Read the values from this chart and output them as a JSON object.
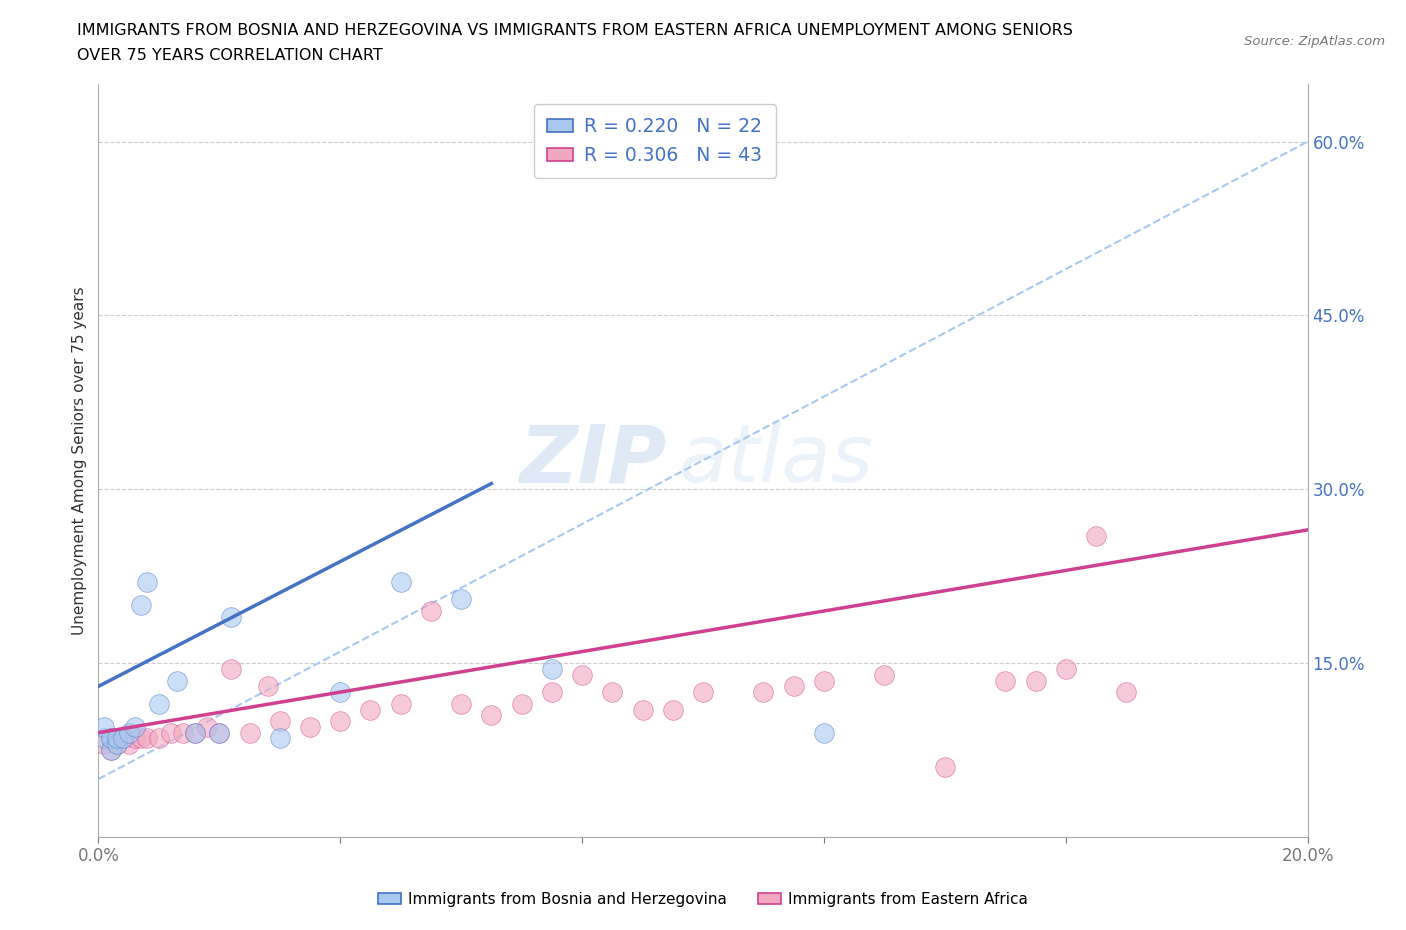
{
  "title_line1": "IMMIGRANTS FROM BOSNIA AND HERZEGOVINA VS IMMIGRANTS FROM EASTERN AFRICA UNEMPLOYMENT AMONG SENIORS",
  "title_line2": "OVER 75 YEARS CORRELATION CHART",
  "source": "Source: ZipAtlas.com",
  "ylabel": "Unemployment Among Seniors over 75 years",
  "xlim": [
    0.0,
    0.2
  ],
  "ylim": [
    0.0,
    0.65
  ],
  "x_ticks": [
    0.0,
    0.04,
    0.08,
    0.12,
    0.16,
    0.2
  ],
  "x_tick_labels": [
    "0.0%",
    "",
    "",
    "",
    "",
    "20.0%"
  ],
  "y_ticks_right": [
    0.15,
    0.3,
    0.45,
    0.6
  ],
  "y_tick_labels_right": [
    "15.0%",
    "30.0%",
    "45.0%",
    "60.0%"
  ],
  "legend_r1": "R = 0.220   N = 22",
  "legend_r2": "R = 0.306   N = 43",
  "color_bosnia": "#a8c8f0",
  "color_eastern": "#f0a8c0",
  "color_line_bosnia": "#4472c4",
  "color_line_eastern": "#d04090",
  "color_line_dashed": "#a8c8f0",
  "watermark_zip": "ZIP",
  "watermark_atlas": "atlas",
  "bosnia_scatter_x": [
    0.001,
    0.001,
    0.002,
    0.002,
    0.003,
    0.003,
    0.004,
    0.005,
    0.006,
    0.007,
    0.008,
    0.01,
    0.013,
    0.016,
    0.02,
    0.022,
    0.03,
    0.04,
    0.05,
    0.06,
    0.075,
    0.12
  ],
  "bosnia_scatter_y": [
    0.085,
    0.095,
    0.075,
    0.085,
    0.08,
    0.085,
    0.085,
    0.09,
    0.095,
    0.2,
    0.22,
    0.115,
    0.135,
    0.09,
    0.09,
    0.19,
    0.085,
    0.125,
    0.22,
    0.205,
    0.145,
    0.09
  ],
  "eastern_scatter_x": [
    0.001,
    0.002,
    0.002,
    0.003,
    0.004,
    0.005,
    0.006,
    0.007,
    0.008,
    0.01,
    0.012,
    0.014,
    0.016,
    0.018,
    0.02,
    0.022,
    0.025,
    0.028,
    0.03,
    0.035,
    0.04,
    0.045,
    0.05,
    0.055,
    0.06,
    0.065,
    0.07,
    0.075,
    0.08,
    0.085,
    0.09,
    0.095,
    0.1,
    0.11,
    0.115,
    0.12,
    0.13,
    0.14,
    0.15,
    0.155,
    0.16,
    0.165,
    0.17
  ],
  "eastern_scatter_y": [
    0.08,
    0.075,
    0.085,
    0.08,
    0.085,
    0.08,
    0.085,
    0.085,
    0.085,
    0.085,
    0.09,
    0.09,
    0.09,
    0.095,
    0.09,
    0.145,
    0.09,
    0.13,
    0.1,
    0.095,
    0.1,
    0.11,
    0.115,
    0.195,
    0.115,
    0.105,
    0.115,
    0.125,
    0.14,
    0.125,
    0.11,
    0.11,
    0.125,
    0.125,
    0.13,
    0.135,
    0.14,
    0.06,
    0.135,
    0.135,
    0.145,
    0.26,
    0.125
  ],
  "bosnia_trend_x": [
    0.0,
    0.065
  ],
  "bosnia_trend_y": [
    0.13,
    0.305
  ],
  "eastern_trend_x": [
    0.0,
    0.2
  ],
  "eastern_trend_y": [
    0.09,
    0.265
  ],
  "dashed_trend_x": [
    0.0,
    0.2
  ],
  "dashed_trend_y": [
    0.05,
    0.6
  ]
}
